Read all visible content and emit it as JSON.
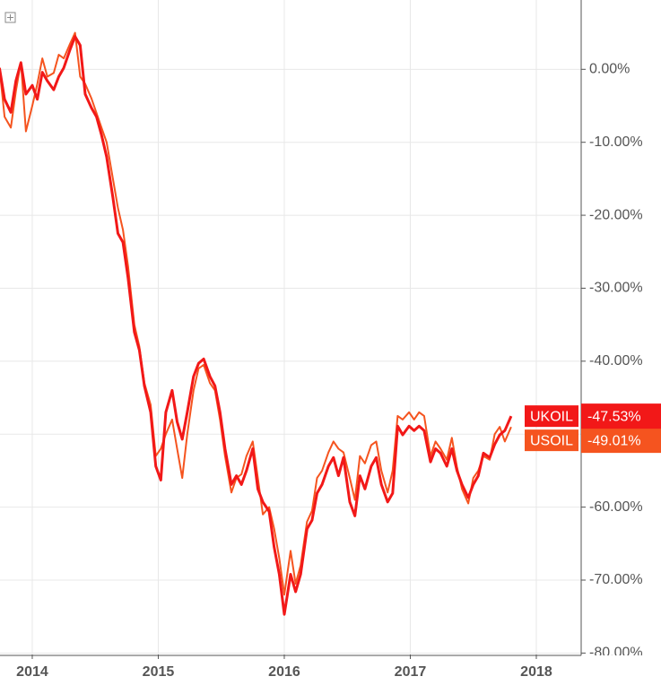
{
  "chart_data": {
    "type": "line",
    "x": [
      2013.74,
      2013.78,
      2013.83,
      2013.87,
      2013.91,
      2013.95,
      2014.0,
      2014.04,
      2014.08,
      2014.12,
      2014.17,
      2014.21,
      2014.25,
      2014.3,
      2014.34,
      2014.38,
      2014.42,
      2014.47,
      2014.51,
      2014.55,
      2014.59,
      2014.64,
      2014.68,
      2014.72,
      2014.76,
      2014.81,
      2014.85,
      2014.89,
      2014.94,
      2014.98,
      2015.02,
      2015.06,
      2015.11,
      2015.15,
      2015.19,
      2015.23,
      2015.28,
      2015.32,
      2015.36,
      2015.41,
      2015.45,
      2015.49,
      2015.53,
      2015.58,
      2015.62,
      2015.66,
      2015.7,
      2015.75,
      2015.79,
      2015.83,
      2015.88,
      2015.92,
      2015.96,
      2016.0,
      2016.05,
      2016.09,
      2016.13,
      2016.18,
      2016.22,
      2016.26,
      2016.3,
      2016.35,
      2016.39,
      2016.43,
      2016.47,
      2016.52,
      2016.56,
      2016.6,
      2016.64,
      2016.69,
      2016.73,
      2016.77,
      2016.82,
      2016.86,
      2016.9,
      2016.94,
      2016.99,
      2017.03,
      2017.07,
      2017.11,
      2017.16,
      2017.2,
      2017.24,
      2017.29,
      2017.33,
      2017.37,
      2017.41,
      2017.46,
      2017.5,
      2017.54,
      2017.58,
      2017.63,
      2017.67,
      2017.71,
      2017.75,
      2017.8
    ],
    "series": [
      {
        "name": "USOIL",
        "color": "#f5541f",
        "values": [
          0.2,
          -6.5,
          -8.0,
          -3.0,
          1.0,
          -8.5,
          -5.0,
          -2.0,
          1.5,
          -1.0,
          -0.5,
          2.0,
          1.5,
          3.5,
          5.0,
          -1.0,
          -2.0,
          -4.0,
          -6.0,
          -8.0,
          -10,
          -15,
          -19,
          -22,
          -27,
          -35,
          -38,
          -43,
          -46,
          -53,
          -52,
          -50,
          -48,
          -52,
          -56,
          -50,
          -44,
          -41,
          -40.5,
          -43,
          -44,
          -48,
          -53,
          -58,
          -56,
          -55.5,
          -53,
          -51,
          -56,
          -61,
          -60,
          -63,
          -67,
          -72,
          -66,
          -70.5,
          -68,
          -62,
          -60.5,
          -56,
          -55,
          -52.5,
          -51,
          -52,
          -52.5,
          -56,
          -59,
          -53,
          -54,
          -51.5,
          -51,
          -55,
          -58,
          -55,
          -47.5,
          -48,
          -47,
          -48,
          -47,
          -47.5,
          -53,
          -51,
          -52,
          -53.5,
          -50.5,
          -54.5,
          -57.5,
          -59.5,
          -56,
          -55,
          -53,
          -53.5,
          -50,
          -49,
          -51,
          -49.01
        ],
        "value_labels": [
          null,
          null,
          null,
          null,
          null,
          null,
          null,
          null,
          null,
          null,
          null,
          null,
          null,
          null,
          null,
          null,
          null,
          null,
          null,
          null,
          null,
          null,
          null,
          null,
          null,
          null,
          null,
          null,
          null,
          null,
          null,
          null,
          null,
          null,
          null,
          null,
          null,
          null,
          null,
          null,
          null,
          null,
          null,
          null,
          null,
          null,
          null,
          null,
          null,
          null,
          null,
          null,
          null,
          null,
          null,
          null,
          null,
          null,
          null,
          null,
          null,
          null,
          null,
          null,
          null,
          null,
          null,
          null,
          null,
          null,
          null,
          null,
          null,
          null,
          null,
          null,
          null,
          null,
          null,
          null,
          null,
          null,
          null,
          null,
          null,
          null,
          null,
          null,
          null,
          null,
          null,
          null,
          null,
          null,
          null,
          "-49.01%"
        ]
      },
      {
        "name": "UKOIL",
        "color": "#f21818",
        "values": [
          0.2,
          -4.1,
          -5.9,
          -1.6,
          0.9,
          -3.4,
          -2.2,
          -4.1,
          -0.4,
          -1.6,
          -2.8,
          -1.0,
          0.2,
          2.7,
          4.5,
          3.3,
          -3.4,
          -5.3,
          -6.5,
          -9.0,
          -12.0,
          -17.6,
          -22.5,
          -23.7,
          -28.6,
          -36.0,
          -38.5,
          -43.4,
          -47.0,
          -54.4,
          -56.3,
          -47.0,
          -44.0,
          -48.3,
          -50.7,
          -47.0,
          -42.1,
          -40.3,
          -39.7,
          -42.1,
          -43.4,
          -47.0,
          -52.0,
          -56.9,
          -55.7,
          -56.9,
          -55.0,
          -52.0,
          -57.5,
          -59.3,
          -60.6,
          -65.5,
          -69.2,
          -74.7,
          -69.2,
          -71.6,
          -69.2,
          -63.0,
          -61.8,
          -58.1,
          -56.9,
          -54.4,
          -53.2,
          -55.7,
          -53.2,
          -59.3,
          -61.2,
          -55.7,
          -57.5,
          -54.4,
          -53.2,
          -56.9,
          -59.3,
          -58.1,
          -48.9,
          -50.1,
          -48.9,
          -49.5,
          -48.9,
          -49.5,
          -53.8,
          -52.0,
          -52.6,
          -54.4,
          -52.0,
          -55.0,
          -56.9,
          -58.7,
          -56.9,
          -55.7,
          -52.6,
          -53.2,
          -51.4,
          -50.1,
          -49.5,
          -47.53
        ],
        "value_labels": [
          null,
          null,
          null,
          null,
          null,
          null,
          null,
          null,
          null,
          null,
          null,
          null,
          null,
          null,
          null,
          null,
          null,
          null,
          null,
          null,
          null,
          null,
          null,
          null,
          null,
          null,
          null,
          null,
          null,
          null,
          null,
          null,
          null,
          null,
          null,
          null,
          null,
          null,
          null,
          null,
          null,
          null,
          null,
          null,
          null,
          null,
          null,
          null,
          null,
          null,
          null,
          null,
          null,
          null,
          null,
          null,
          null,
          null,
          null,
          null,
          null,
          null,
          null,
          null,
          null,
          null,
          null,
          null,
          null,
          null,
          null,
          null,
          null,
          null,
          null,
          null,
          null,
          null,
          null,
          null,
          null,
          null,
          null,
          null,
          null,
          null,
          null,
          null,
          null,
          null,
          null,
          null,
          null,
          null,
          null,
          "-47.53%"
        ]
      }
    ],
    "xlim": [
      2013.744,
      2018.356
    ],
    "xticks": [
      2014,
      2015,
      2016,
      2017,
      2018
    ],
    "ylim": [
      -80.2,
      9.5
    ],
    "yticks": [
      {
        "value": 0,
        "label": "0.00%"
      },
      {
        "value": -10,
        "label": "-10.00%"
      },
      {
        "value": -20,
        "label": "-20.00%"
      },
      {
        "value": -30,
        "label": "-30.00%"
      },
      {
        "value": -40,
        "label": "-40.00%"
      },
      {
        "value": -50,
        "label": "-50.00%"
      },
      {
        "value": -60,
        "label": "-60.00%"
      },
      {
        "value": -70,
        "label": "-70.00%"
      },
      {
        "value": -80,
        "label": "-80.00%"
      }
    ],
    "grid": true
  }
}
